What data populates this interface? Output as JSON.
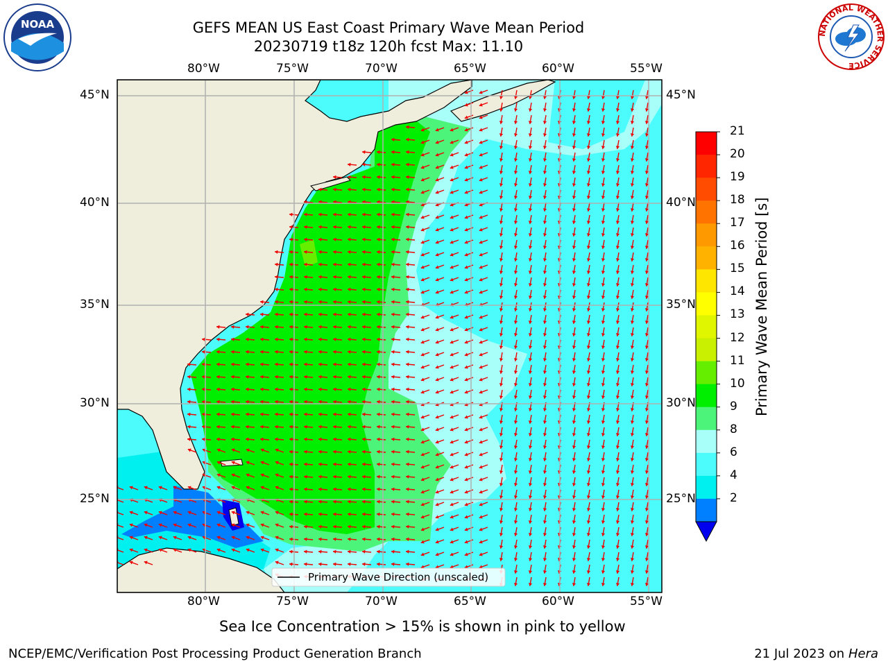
{
  "title_line1": "GEFS MEAN US East Coast Primary Wave Mean Period",
  "title_line2": "20230719 t18z 120h fcst   Max: 11.10",
  "lon_ticks": [
    "80°W",
    "75°W",
    "70°W",
    "65°W",
    "60°W",
    "55°W"
  ],
  "lat_ticks": [
    "45°N",
    "40°N",
    "35°N",
    "30°N",
    "25°N"
  ],
  "legend_label": "Primary Wave Direction (unscaled)",
  "colorbar": {
    "label": "Primary Wave Mean Period [s]",
    "ticks": [
      "21",
      "20",
      "19",
      "18",
      "17",
      "16",
      "15",
      "14",
      "13",
      "12",
      "11",
      "10",
      "9",
      "8",
      "6",
      "4",
      "2"
    ],
    "colors": [
      "#ff0000",
      "#ff2600",
      "#ff4c00",
      "#ff7300",
      "#ff9900",
      "#ffb300",
      "#ffe600",
      "#ffff00",
      "#e0f500",
      "#c8f000",
      "#66ee00",
      "#00ee00",
      "#4cf57a",
      "#a8fffa",
      "#4cfcfc",
      "#00f0f0",
      "#0080ff"
    ],
    "extend_color": "#0000ee"
  },
  "sea_ice_note": "Sea Ice Concentration > 15% is shown in pink to yellow",
  "footer_left": "NCEP/EMC/Verification Post Processing Product Generation Branch",
  "footer_right_date": "21 Jul 2023 on",
  "footer_right_machine": "Hera",
  "logos": {
    "left": "NOAA",
    "right_ring": "NATIONAL WEATHER SERVICE"
  },
  "colors": {
    "land": "#efeedd",
    "arrow": "#ee0000",
    "grid": "#b0b0b0"
  }
}
